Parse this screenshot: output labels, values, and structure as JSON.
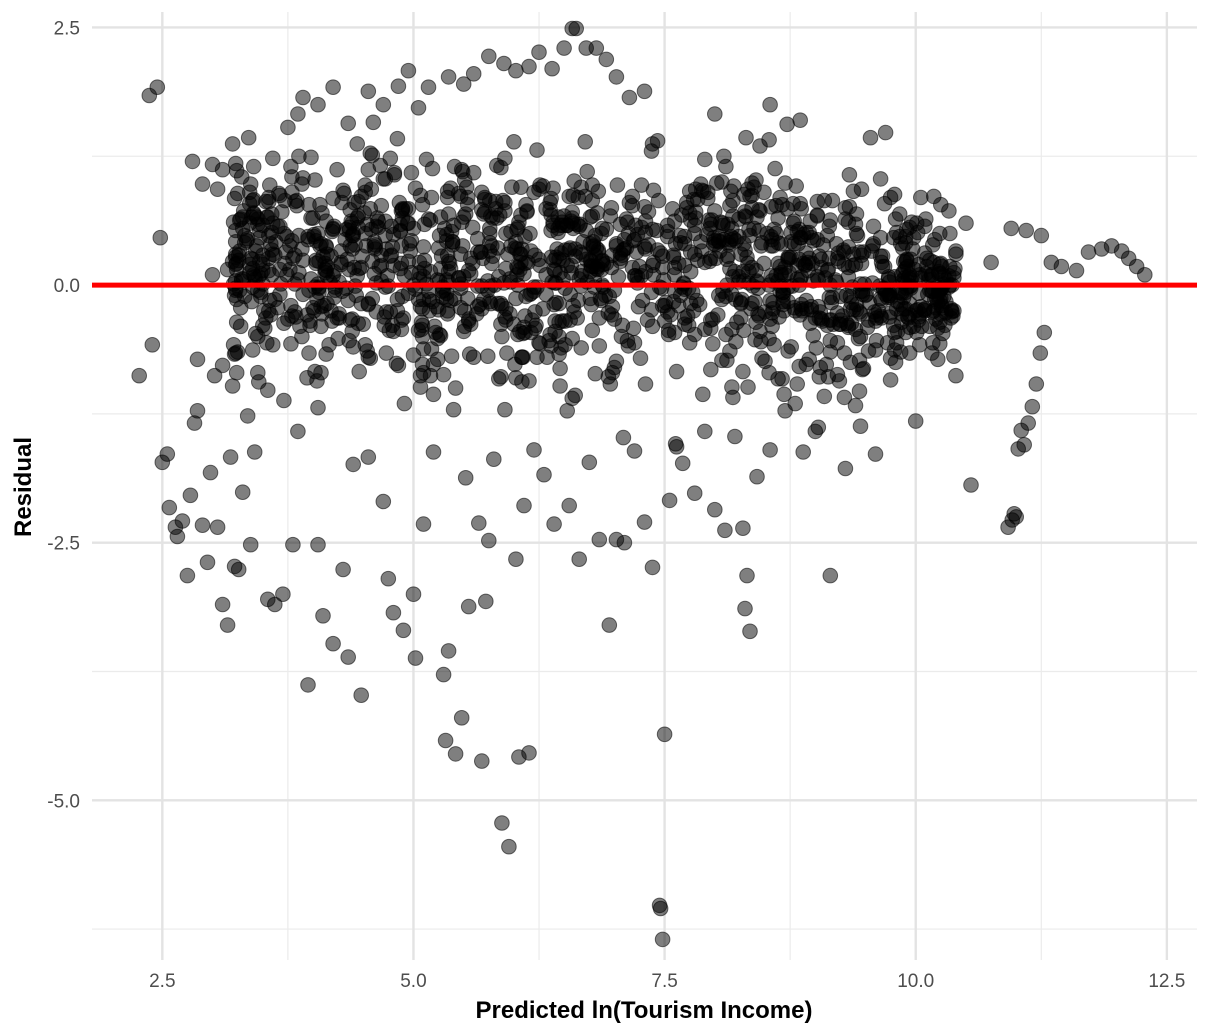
{
  "chart_data": {
    "type": "scatter",
    "title": "",
    "xlabel": "Predicted ln(Tourism Income)",
    "ylabel": "Residual",
    "xlim": [
      1.8,
      12.8
    ],
    "ylim": [
      -6.55,
      2.65
    ],
    "x_ticks": [
      2.5,
      5.0,
      7.5,
      10.0,
      12.5
    ],
    "x_tick_labels": [
      "2.5",
      "5.0",
      "7.5",
      "10.0",
      "12.5"
    ],
    "y_ticks": [
      -5.0,
      -2.5,
      0.0,
      2.5
    ],
    "y_tick_labels": [
      "-5.0",
      "-2.5",
      "0.0",
      "2.5"
    ],
    "grid": true,
    "reference_line": {
      "y": 0,
      "color": "#ff0000"
    },
    "point_color": "#000000",
    "point_opacity": 0.5,
    "legend": "none",
    "series": [
      {
        "points": [
          [
            2.27,
            -0.88
          ],
          [
            2.37,
            1.84
          ],
          [
            2.4,
            -0.58
          ],
          [
            2.45,
            1.92
          ],
          [
            2.5,
            -1.72
          ],
          [
            2.48,
            0.46
          ],
          [
            2.55,
            -1.64
          ],
          [
            2.57,
            -2.16
          ],
          [
            2.63,
            -2.35
          ],
          [
            2.65,
            -2.44
          ],
          [
            2.7,
            -2.29
          ],
          [
            2.75,
            -2.82
          ],
          [
            2.78,
            -2.04
          ],
          [
            2.82,
            -1.34
          ],
          [
            2.85,
            -1.22
          ],
          [
            2.9,
            -2.33
          ],
          [
            2.95,
            -2.69
          ],
          [
            2.98,
            -1.82
          ],
          [
            3.02,
            -0.88
          ],
          [
            3.05,
            -2.35
          ],
          [
            3.1,
            -3.1
          ],
          [
            3.15,
            -3.3
          ],
          [
            3.18,
            -1.67
          ],
          [
            3.22,
            -2.73
          ],
          [
            3.26,
            -2.76
          ],
          [
            3.3,
            -2.01
          ],
          [
            3.35,
            -1.27
          ],
          [
            3.38,
            -2.52
          ],
          [
            3.42,
            -1.62
          ],
          [
            3.55,
            -3.05
          ],
          [
            3.62,
            -3.1
          ],
          [
            3.7,
            -3.0
          ],
          [
            3.8,
            -2.52
          ],
          [
            3.85,
            -1.42
          ],
          [
            3.95,
            -3.88
          ],
          [
            4.05,
            -2.52
          ],
          [
            4.1,
            -3.21
          ],
          [
            4.2,
            -3.48
          ],
          [
            4.3,
            -2.76
          ],
          [
            4.35,
            -3.61
          ],
          [
            4.4,
            -1.74
          ],
          [
            4.48,
            -3.98
          ],
          [
            4.55,
            -1.67
          ],
          [
            4.7,
            -2.1
          ],
          [
            4.75,
            -2.85
          ],
          [
            4.8,
            -3.18
          ],
          [
            4.9,
            -3.35
          ],
          [
            5.0,
            -3.0
          ],
          [
            5.02,
            -3.62
          ],
          [
            5.1,
            -2.32
          ],
          [
            5.2,
            -1.62
          ],
          [
            5.3,
            -3.78
          ],
          [
            5.32,
            -4.42
          ],
          [
            5.35,
            -3.55
          ],
          [
            5.42,
            -4.55
          ],
          [
            5.48,
            -4.2
          ],
          [
            5.52,
            -1.87
          ],
          [
            5.55,
            -3.12
          ],
          [
            5.65,
            -2.31
          ],
          [
            5.68,
            -4.62
          ],
          [
            5.72,
            -3.07
          ],
          [
            5.75,
            -2.48
          ],
          [
            5.8,
            -1.69
          ],
          [
            5.88,
            -5.22
          ],
          [
            5.95,
            -5.45
          ],
          [
            6.02,
            -2.66
          ],
          [
            6.05,
            -4.58
          ],
          [
            6.1,
            -2.14
          ],
          [
            6.15,
            -4.54
          ],
          [
            6.2,
            -1.6
          ],
          [
            6.3,
            -1.84
          ],
          [
            6.4,
            -2.32
          ],
          [
            6.55,
            -2.14
          ],
          [
            6.65,
            -2.66
          ],
          [
            6.75,
            -1.72
          ],
          [
            6.85,
            -2.47
          ],
          [
            6.95,
            -3.3
          ],
          [
            7.02,
            -2.47
          ],
          [
            7.1,
            -2.5
          ],
          [
            7.2,
            -1.61
          ],
          [
            7.3,
            -2.3
          ],
          [
            7.38,
            -2.74
          ],
          [
            7.45,
            -6.02
          ],
          [
            7.46,
            -6.05
          ],
          [
            7.48,
            -6.35
          ],
          [
            7.5,
            -4.36
          ],
          [
            7.55,
            -2.09
          ],
          [
            7.62,
            -1.57
          ],
          [
            7.68,
            -1.73
          ],
          [
            7.8,
            -2.02
          ],
          [
            7.9,
            -1.42
          ],
          [
            8.0,
            -2.18
          ],
          [
            8.1,
            -2.38
          ],
          [
            8.2,
            -1.47
          ],
          [
            8.28,
            -2.36
          ],
          [
            8.3,
            -3.14
          ],
          [
            8.32,
            -2.82
          ],
          [
            8.35,
            -3.36
          ],
          [
            8.42,
            -1.86
          ],
          [
            8.55,
            -1.6
          ],
          [
            8.7,
            -1.22
          ],
          [
            8.88,
            -1.62
          ],
          [
            9.0,
            -1.42
          ],
          [
            9.15,
            -2.82
          ],
          [
            9.3,
            -1.78
          ],
          [
            9.45,
            -1.37
          ],
          [
            9.6,
            -1.64
          ],
          [
            9.75,
            -0.92
          ],
          [
            10.0,
            -1.32
          ],
          [
            10.55,
            -1.94
          ],
          [
            10.92,
            -2.35
          ],
          [
            10.96,
            -2.28
          ],
          [
            10.98,
            -2.22
          ],
          [
            11.0,
            -2.25
          ],
          [
            11.02,
            -1.59
          ],
          [
            11.05,
            -1.41
          ],
          [
            11.08,
            -1.55
          ],
          [
            11.12,
            -1.34
          ],
          [
            11.16,
            -1.18
          ],
          [
            11.2,
            -0.96
          ],
          [
            11.24,
            -0.66
          ],
          [
            11.28,
            -0.46
          ],
          [
            3.0,
            1.17
          ],
          [
            3.05,
            0.93
          ],
          [
            3.1,
            1.12
          ],
          [
            3.2,
            1.37
          ],
          [
            3.5,
            0.58
          ],
          [
            3.6,
            1.23
          ],
          [
            3.75,
            1.53
          ],
          [
            3.85,
            1.66
          ],
          [
            3.9,
            1.82
          ],
          [
            4.05,
            1.75
          ],
          [
            4.2,
            1.92
          ],
          [
            4.35,
            1.57
          ],
          [
            4.55,
            1.88
          ],
          [
            4.7,
            1.75
          ],
          [
            4.85,
            1.93
          ],
          [
            4.95,
            2.08
          ],
          [
            5.05,
            1.72
          ],
          [
            5.15,
            1.92
          ],
          [
            5.35,
            2.02
          ],
          [
            5.5,
            1.95
          ],
          [
            5.6,
            2.05
          ],
          [
            5.75,
            2.22
          ],
          [
            5.9,
            2.15
          ],
          [
            6.02,
            2.08
          ],
          [
            6.15,
            2.12
          ],
          [
            6.25,
            2.26
          ],
          [
            6.38,
            2.1
          ],
          [
            6.5,
            2.3
          ],
          [
            6.58,
            2.49
          ],
          [
            6.62,
            2.49
          ],
          [
            6.72,
            2.3
          ],
          [
            6.82,
            2.3
          ],
          [
            6.92,
            2.19
          ],
          [
            7.02,
            2.02
          ],
          [
            7.15,
            1.82
          ],
          [
            7.3,
            1.88
          ],
          [
            8.0,
            1.66
          ],
          [
            8.55,
            1.75
          ],
          [
            8.72,
            1.56
          ],
          [
            8.85,
            1.6
          ],
          [
            9.55,
            1.43
          ],
          [
            9.7,
            1.48
          ],
          [
            10.05,
            0.85
          ],
          [
            10.25,
            0.78
          ],
          [
            10.5,
            0.6
          ],
          [
            10.75,
            0.22
          ],
          [
            10.95,
            0.55
          ],
          [
            11.1,
            0.53
          ],
          [
            11.25,
            0.48
          ],
          [
            11.35,
            0.22
          ],
          [
            11.45,
            0.18
          ],
          [
            11.6,
            0.14
          ],
          [
            11.72,
            0.32
          ],
          [
            11.85,
            0.35
          ],
          [
            11.95,
            0.38
          ],
          [
            12.05,
            0.33
          ],
          [
            12.12,
            0.26
          ],
          [
            12.2,
            0.18
          ],
          [
            12.28,
            0.1
          ],
          [
            2.8,
            1.2
          ],
          [
            2.9,
            0.98
          ],
          [
            3.3,
            0.55
          ],
          [
            3.4,
            0.25
          ],
          [
            3.0,
            0.1
          ],
          [
            3.15,
            0.15
          ],
          [
            3.6,
            0.3
          ],
          [
            3.25,
            -0.65
          ],
          [
            3.45,
            -0.85
          ],
          [
            2.85,
            -0.72
          ],
          [
            3.1,
            -0.78
          ],
          [
            3.2,
            -0.98
          ],
          [
            3.55,
            -1.02
          ],
          [
            3.6,
            -0.58
          ]
        ]
      }
    ]
  }
}
